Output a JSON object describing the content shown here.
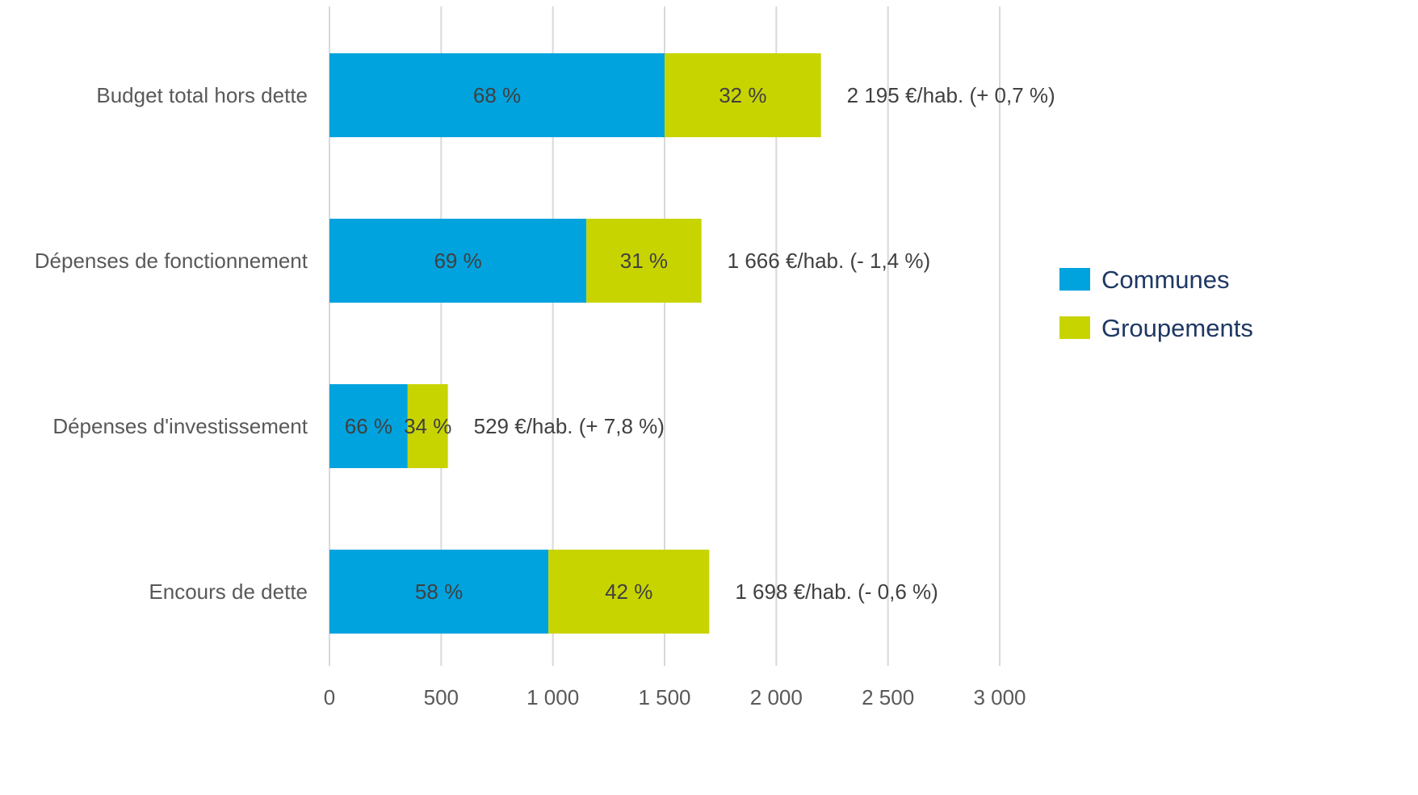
{
  "chart_data": {
    "type": "bar",
    "orientation": "horizontal",
    "stacked": true,
    "title": "",
    "xlabel": "",
    "ylabel": "",
    "xlim": [
      0,
      3000
    ],
    "xticks": [
      0,
      500,
      1000,
      1500,
      2000,
      2500,
      3000
    ],
    "xtick_labels": [
      "0",
      "500",
      "1 000",
      "1 500",
      "2 000",
      "2 500",
      "3 000"
    ],
    "grid": "vertical",
    "legend_position": "right",
    "categories": [
      "Budget total hors dette",
      "Dépenses de fonctionnement",
      "Dépenses d'investissement",
      "Encours de dette"
    ],
    "series": [
      {
        "name": "Communes",
        "color": "#00a3de",
        "values": [
          1500,
          1150,
          350,
          980
        ],
        "labels": [
          "68 %",
          "69 %",
          "66 %",
          "58 %"
        ]
      },
      {
        "name": "Groupements",
        "color": "#c8d400",
        "values": [
          700,
          515,
          180,
          720
        ],
        "labels": [
          "32 %",
          "31 %",
          "34 %",
          "42 %"
        ]
      }
    ],
    "totals_labels": [
      "2 195 €/hab. (+ 0,7 %)",
      "1 666 €/hab. (- 1,4 %)",
      "529 €/hab. (+ 7,8 %)",
      "1 698 €/hab. (- 0,6 %)"
    ],
    "colors": {
      "gridline": "#d9d9d9",
      "category_text": "#595959",
      "data_label_text": "#404040",
      "legend_text": "#1f3864"
    }
  }
}
